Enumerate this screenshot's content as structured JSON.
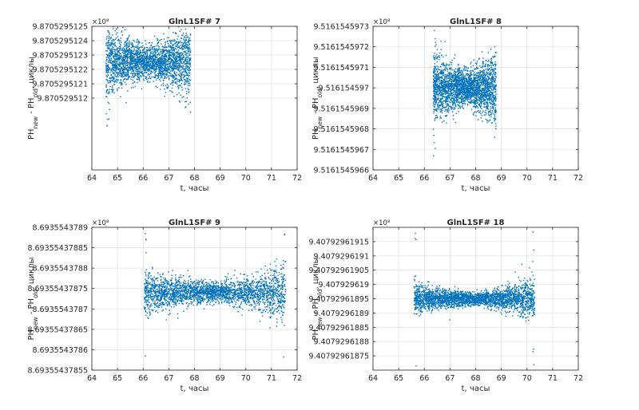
{
  "chart_data": [
    {
      "type": "scatter",
      "title": "GlnL1SF# 7",
      "xlabel": "t, часы",
      "ylabel": {
        "main": "PH",
        "sub1": "new",
        "mid": " - PH",
        "sub2": "old",
        "tail": ", циклы"
      },
      "exponent": "×10⁸",
      "xlim": [
        64,
        72
      ],
      "xticks": [
        64,
        65,
        66,
        67,
        68,
        69,
        70,
        71,
        72
      ],
      "ylim": [
        9.8705295115,
        9.8705295125
      ],
      "yticks": [
        9.870529512,
        9.8705295121,
        9.8705295122,
        9.8705295123,
        9.8705295124,
        9.8705295125
      ],
      "ytick_labels": [
        "9.870529512",
        "9.8705295121",
        "9.8705295122",
        "9.8705295123",
        "9.8705295124",
        "9.8705295125"
      ],
      "grid": true,
      "color": "#0072BD",
      "series": [
        {
          "t_start": 64.55,
          "t_end": 67.85,
          "center": 9.87052951225,
          "spread": [
            3e-10,
            1.2e-10,
            3e-10
          ]
        }
      ]
    },
    {
      "type": "scatter",
      "title": "GlnL1SF# 8",
      "xlabel": "t, часы",
      "ylabel": {
        "main": "PH",
        "sub1": "new",
        "mid": " - PH",
        "sub2": "old",
        "tail": ", циклы"
      },
      "exponent": "×10⁸",
      "xlim": [
        64,
        72
      ],
      "xticks": [
        64,
        65,
        66,
        67,
        68,
        69,
        70,
        71,
        72
      ],
      "ylim": [
        9.5161545966,
        9.5161545973
      ],
      "yticks": [
        9.5161545966,
        9.5161545967,
        9.5161545968,
        9.5161545969,
        9.516154597,
        9.5161545971,
        9.5161545972,
        9.5161545973
      ],
      "ytick_labels": [
        "9.5161545966",
        "9.5161545967",
        "9.5161545968",
        "9.5161545969",
        "9.516154597",
        "9.5161545971",
        "9.5161545972",
        "9.5161545973"
      ],
      "grid": true,
      "color": "#0072BD",
      "series": [
        {
          "t_start": 66.35,
          "t_end": 68.8,
          "center": 9.516154597,
          "spread": [
            2e-10,
            9e-11,
            2e-10
          ]
        }
      ]
    },
    {
      "type": "scatter",
      "title": "GlnL1SF# 9",
      "xlabel": "t, часы",
      "ylabel": {
        "main": "PH",
        "sub1": "new",
        "mid": " - PH",
        "sub2": "old",
        "tail": ", циклы"
      },
      "exponent": "×10⁸",
      "xlim": [
        64,
        72
      ],
      "xticks": [
        64,
        65,
        66,
        67,
        68,
        69,
        70,
        71,
        72
      ],
      "ylim": [
        8.69355437855,
        8.6935543789
      ],
      "yticks": [
        8.69355437855,
        8.6935543786,
        8.69355437865,
        8.6935543787,
        8.69355437875,
        8.6935543788,
        8.69355437885,
        8.6935543789
      ],
      "ytick_labels": [
        "8.69355437855",
        "8.6935543786",
        "8.69355437865",
        "8.6935543787",
        "8.69355437875",
        "8.6935543788",
        "8.69355437885",
        "8.6935543789"
      ],
      "grid": true,
      "color": "#0072BD",
      "series": [
        {
          "t_start": 66.05,
          "t_end": 71.55,
          "center": 8.69355437874,
          "spread": [
            7e-11,
            2.5e-11,
            8e-11
          ]
        }
      ]
    },
    {
      "type": "scatter",
      "title": "GlnL1SF# 18",
      "xlabel": "t, часы",
      "ylabel": {
        "main": "PH",
        "sub1": "new",
        "mid": " - PH",
        "sub2": "old",
        "tail": ", циклы"
      },
      "exponent": "×10⁸",
      "xlim": [
        64,
        72
      ],
      "xticks": [
        64,
        65,
        66,
        67,
        68,
        69,
        70,
        71,
        72
      ],
      "ylim": [
        9.4079296187,
        9.4079296192
      ],
      "yticks": [
        9.40792961875,
        9.4079296188,
        9.40792961885,
        9.4079296189,
        9.40792961895,
        9.407929619,
        9.40792961905,
        9.4079296191,
        9.40792961915
      ],
      "ytick_labels": [
        "9.40792961875",
        "9.4079296188",
        "9.40792961885",
        "9.4079296189",
        "9.40792961895",
        "9.407929619",
        "9.40792961905",
        "9.4079296191",
        "9.40792961915"
      ],
      "grid": true,
      "color": "#0072BD",
      "series": [
        {
          "t_start": 65.6,
          "t_end": 70.3,
          "center": 9.40792961895,
          "spread": [
            6e-11,
            2.5e-11,
            8e-11
          ]
        }
      ]
    }
  ]
}
